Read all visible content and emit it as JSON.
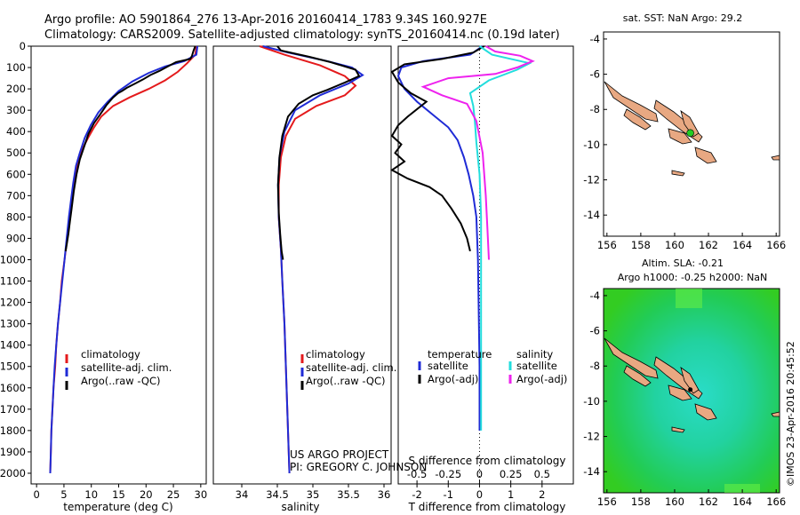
{
  "header": {
    "line1": "Argo profile: AO 5901864_276 13-Apr-2016 20160414_1783 9.34S 160.927E",
    "line2": "Climatology: CARS2009. Satellite-adjusted climatology: synTS_20160414.nc (0.19d later)"
  },
  "colors": {
    "climatology": "#e41a1c",
    "satellite": "#1f2bd6",
    "argo": "#000000",
    "sat_salinity": "#22dddd",
    "argo_salinity": "#ee22ee"
  },
  "chart_data": [
    {
      "type": "line",
      "id": "temperature",
      "xlabel": "temperature (deg C)",
      "xlim": [
        -1,
        31
      ],
      "xticks": [
        0,
        5,
        10,
        15,
        20,
        25,
        30
      ],
      "ylim": [
        0,
        2050
      ],
      "yticks": [
        0,
        100,
        200,
        300,
        400,
        500,
        600,
        700,
        800,
        900,
        1000,
        1100,
        1200,
        1300,
        1400,
        1500,
        1600,
        1700,
        1800,
        1900,
        2000
      ],
      "legend": [
        "climatology",
        "satellite-adj. clim.",
        "Argo(..raw -QC)"
      ],
      "series": [
        {
          "name": "climatology",
          "color": "#e41a1c",
          "points": [
            [
              29.2,
              0
            ],
            [
              29,
              40
            ],
            [
              27.5,
              80
            ],
            [
              25.8,
              120
            ],
            [
              23.5,
              160
            ],
            [
              20.5,
              200
            ],
            [
              17,
              240
            ],
            [
              14,
              280
            ],
            [
              11.8,
              330
            ],
            [
              10.5,
              380
            ],
            [
              9.4,
              430
            ],
            [
              8.4,
              480
            ],
            [
              7.6,
              540
            ],
            [
              7,
              600
            ],
            [
              6.5,
              700
            ],
            [
              6.1,
              800
            ],
            [
              5.6,
              900
            ],
            [
              5.1,
              1000
            ],
            [
              4.6,
              1100
            ],
            [
              4.3,
              1200
            ],
            [
              3.9,
              1300
            ],
            [
              3.6,
              1400
            ],
            [
              3.4,
              1500
            ],
            [
              3.1,
              1600
            ],
            [
              2.9,
              1700
            ],
            [
              2.7,
              1800
            ],
            [
              2.6,
              1900
            ],
            [
              2.5,
              2000
            ]
          ]
        },
        {
          "name": "satellite",
          "color": "#1f2bd6",
          "points": [
            [
              29.4,
              0
            ],
            [
              29.2,
              40
            ],
            [
              27,
              70
            ],
            [
              23.5,
              95
            ],
            [
              20.5,
              125
            ],
            [
              17.5,
              165
            ],
            [
              15,
              210
            ],
            [
              13,
              260
            ],
            [
              11.3,
              310
            ],
            [
              9.9,
              370
            ],
            [
              8.8,
              430
            ],
            [
              7.9,
              500
            ],
            [
              7.2,
              560
            ],
            [
              6.7,
              640
            ],
            [
              6.3,
              720
            ],
            [
              5.9,
              800
            ],
            [
              5.5,
              900
            ],
            [
              5.1,
              1000
            ],
            [
              4.7,
              1100
            ],
            [
              4.3,
              1200
            ],
            [
              3.9,
              1300
            ],
            [
              3.6,
              1400
            ],
            [
              3.3,
              1500
            ],
            [
              3.1,
              1600
            ],
            [
              2.9,
              1700
            ],
            [
              2.7,
              1800
            ],
            [
              2.6,
              1900
            ],
            [
              2.5,
              2000
            ]
          ]
        },
        {
          "name": "argo",
          "color": "#000000",
          "points": [
            [
              29,
              0
            ],
            [
              28.7,
              20
            ],
            [
              28.4,
              45
            ],
            [
              28.1,
              60
            ],
            [
              25.5,
              75
            ],
            [
              24,
              95
            ],
            [
              22.5,
              115
            ],
            [
              20.8,
              135
            ],
            [
              19.5,
              155
            ],
            [
              18,
              175
            ],
            [
              16.5,
              195
            ],
            [
              15.6,
              210
            ],
            [
              14.9,
              220
            ],
            [
              14,
              240
            ],
            [
              12.8,
              275
            ],
            [
              11.6,
              320
            ],
            [
              10.5,
              360
            ],
            [
              9.5,
              410
            ],
            [
              8.7,
              470
            ],
            [
              7.9,
              530
            ],
            [
              7.3,
              600
            ],
            [
              6.8,
              680
            ],
            [
              6.4,
              760
            ],
            [
              6.1,
              820
            ],
            [
              5.8,
              880
            ],
            [
              5.5,
              930
            ],
            [
              5.3,
              960
            ]
          ]
        }
      ]
    },
    {
      "type": "line",
      "id": "salinity",
      "xlabel": "salinity",
      "xlim": [
        33.6,
        36.1
      ],
      "xticks": [
        34,
        34.5,
        35,
        35.5,
        36
      ],
      "ylim": [
        0,
        2050
      ],
      "legend": [
        "climatology",
        "satellite-adj. clim.",
        "Argo(..raw -QC)"
      ],
      "annotation": [
        "US ARGO PROJECT",
        "PI: GREGORY C. JOHNSON"
      ],
      "series": [
        {
          "name": "climatology",
          "color": "#e41a1c",
          "points": [
            [
              34.25,
              0
            ],
            [
              34.6,
              40
            ],
            [
              35.1,
              90
            ],
            [
              35.45,
              140
            ],
            [
              35.6,
              185
            ],
            [
              35.45,
              230
            ],
            [
              35.05,
              280
            ],
            [
              34.75,
              340
            ],
            [
              34.62,
              420
            ],
            [
              34.55,
              520
            ],
            [
              34.52,
              650
            ],
            [
              34.52,
              800
            ],
            [
              34.55,
              950
            ],
            [
              34.57,
              1100
            ],
            [
              34.6,
              1300
            ],
            [
              34.62,
              1500
            ],
            [
              34.64,
              1700
            ],
            [
              34.66,
              1900
            ],
            [
              34.67,
              2000
            ]
          ]
        },
        {
          "name": "satellite",
          "color": "#1f2bd6",
          "points": [
            [
              34.3,
              0
            ],
            [
              34.65,
              30
            ],
            [
              35.2,
              70
            ],
            [
              35.55,
              100
            ],
            [
              35.7,
              135
            ],
            [
              35.5,
              175
            ],
            [
              35.1,
              230
            ],
            [
              34.75,
              300
            ],
            [
              34.6,
              400
            ],
            [
              34.53,
              520
            ],
            [
              34.51,
              650
            ],
            [
              34.52,
              800
            ],
            [
              34.55,
              950
            ],
            [
              34.57,
              1100
            ],
            [
              34.6,
              1300
            ],
            [
              34.62,
              1500
            ],
            [
              34.64,
              1700
            ],
            [
              34.66,
              1900
            ],
            [
              34.67,
              2000
            ]
          ]
        },
        {
          "name": "argo",
          "color": "#000000",
          "points": [
            [
              34.5,
              0
            ],
            [
              34.55,
              20
            ],
            [
              34.95,
              50
            ],
            [
              35.25,
              75
            ],
            [
              35.6,
              110
            ],
            [
              35.65,
              140
            ],
            [
              35.45,
              170
            ],
            [
              35.2,
              205
            ],
            [
              35.0,
              230
            ],
            [
              34.8,
              270
            ],
            [
              34.65,
              330
            ],
            [
              34.57,
              420
            ],
            [
              34.53,
              520
            ],
            [
              34.51,
              650
            ],
            [
              34.52,
              780
            ],
            [
              34.54,
              880
            ],
            [
              34.56,
              960
            ],
            [
              34.58,
              1000
            ]
          ]
        }
      ]
    },
    {
      "type": "line",
      "id": "difference",
      "xlabel": "T difference from climatology",
      "xlabel_top": "S difference from climatology",
      "xlim": [
        -2.6,
        3.0
      ],
      "t_ticks": [
        -2,
        -1,
        0,
        1,
        2
      ],
      "s_ticks": [
        "-0.5",
        "-0.25",
        "0",
        "0.25",
        "0.5"
      ],
      "ylim": [
        0,
        2050
      ],
      "legend_temperature": [
        "temperature",
        "satellite",
        "Argo(-adj)"
      ],
      "legend_salinity": [
        "salinity",
        "satellite",
        "Argo(-adj)"
      ],
      "series": [
        {
          "name": "T satellite",
          "color": "#1f2bd6",
          "points": [
            [
              0.1,
              0
            ],
            [
              -0.3,
              40
            ],
            [
              -1.8,
              70
            ],
            [
              -2.5,
              100
            ],
            [
              -2.6,
              140
            ],
            [
              -2.4,
              200
            ],
            [
              -2,
              260
            ],
            [
              -1.5,
              320
            ],
            [
              -1,
              380
            ],
            [
              -0.7,
              440
            ],
            [
              -0.5,
              520
            ],
            [
              -0.35,
              600
            ],
            [
              -0.2,
              700
            ],
            [
              -0.1,
              800
            ],
            [
              -0.05,
              1000
            ],
            [
              0,
              1500
            ],
            [
              0,
              1800
            ]
          ]
        },
        {
          "name": "T argo",
          "color": "#000000",
          "points": [
            [
              0.15,
              0
            ],
            [
              -0.2,
              30
            ],
            [
              -1.2,
              60
            ],
            [
              -2.4,
              85
            ],
            [
              -2.8,
              120
            ],
            [
              -2.6,
              170
            ],
            [
              -2.2,
              220
            ],
            [
              -1.7,
              260
            ],
            [
              -2.3,
              330
            ],
            [
              -2.6,
              370
            ],
            [
              -2.8,
              420
            ],
            [
              -2.5,
              460
            ],
            [
              -2.7,
              500
            ],
            [
              -2.4,
              540
            ],
            [
              -2.8,
              580
            ],
            [
              -2.3,
              620
            ],
            [
              -1.6,
              660
            ],
            [
              -1.2,
              700
            ],
            [
              -0.9,
              760
            ],
            [
              -0.6,
              830
            ],
            [
              -0.4,
              900
            ],
            [
              -0.3,
              960
            ]
          ]
        },
        {
          "name": "S satellite",
          "color": "#22dddd",
          "points": [
            [
              0,
              0
            ],
            [
              0.4,
              40
            ],
            [
              1.6,
              80
            ],
            [
              1.2,
              110
            ],
            [
              0.3,
              160
            ],
            [
              -0.3,
              220
            ],
            [
              -0.2,
              280
            ],
            [
              -0.15,
              350
            ],
            [
              -0.1,
              450
            ],
            [
              0,
              600
            ],
            [
              0.05,
              800
            ],
            [
              0.05,
              1000
            ],
            [
              0.05,
              1400
            ],
            [
              0.05,
              1800
            ]
          ]
        },
        {
          "name": "S argo",
          "color": "#ee22ee",
          "points": [
            [
              0.2,
              0
            ],
            [
              0.5,
              25
            ],
            [
              1.3,
              45
            ],
            [
              1.7,
              70
            ],
            [
              1.2,
              100
            ],
            [
              0.5,
              130
            ],
            [
              -1.0,
              150
            ],
            [
              -1.8,
              190
            ],
            [
              -1.2,
              230
            ],
            [
              -0.4,
              270
            ],
            [
              -0.1,
              350
            ],
            [
              0.1,
              500
            ],
            [
              0.2,
              700
            ],
            [
              0.25,
              850
            ],
            [
              0.3,
              1000
            ]
          ]
        }
      ]
    },
    {
      "type": "map",
      "id": "sst",
      "title": "sat. SST: NaN Argo: 29.2",
      "xticks": [
        156,
        158,
        160,
        162,
        164,
        166
      ],
      "yticks": [
        -4,
        -6,
        -8,
        -10,
        -12,
        -14
      ],
      "xlim": [
        155.8,
        166.2
      ],
      "ylim": [
        -15.2,
        -3.6
      ],
      "profile_location": [
        160.927,
        -9.34
      ]
    },
    {
      "type": "map",
      "id": "sla",
      "title_line1": "Altim. SLA: -0.21",
      "title_line2": "Argo h1000: -0.25 h2000: NaN",
      "xticks": [
        156,
        158,
        160,
        162,
        164,
        166
      ],
      "yticks": [
        -4,
        -6,
        -8,
        -10,
        -12,
        -14
      ],
      "xlim": [
        155.8,
        166.2
      ],
      "ylim": [
        -15.2,
        -3.6
      ],
      "profile_location": [
        160.927,
        -9.34
      ]
    }
  ],
  "credit": "©IMOS 23-Apr-2016 20:45:52"
}
